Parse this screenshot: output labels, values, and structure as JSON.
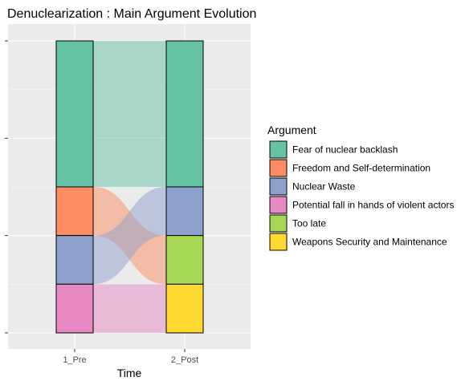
{
  "chart_data": {
    "type": "alluvial",
    "title": "Denuclearization : Main Argument Evolution",
    "xlabel": "Time",
    "ylabel": "",
    "axes": [
      "1_Pre",
      "2_Post"
    ],
    "total": 6,
    "legend": {
      "title": "Argument",
      "placement": "right",
      "items": [
        {
          "name": "Fear of nuclear backlash",
          "color": "#66c2a5"
        },
        {
          "name": "Freedom and Self-determination",
          "color": "#fc8d62"
        },
        {
          "name": "Nuclear Waste",
          "color": "#8da0cb"
        },
        {
          "name": "Potential fall in hands of violent actors",
          "color": "#e78ac3"
        },
        {
          "name": "Too late",
          "color": "#a6d854"
        },
        {
          "name": "Weapons Security and Maintenance",
          "color": "#ffd92f"
        }
      ]
    },
    "strata": {
      "1_Pre": [
        {
          "name": "Fear of nuclear backlash",
          "value": 3
        },
        {
          "name": "Freedom and Self-determination",
          "value": 1
        },
        {
          "name": "Nuclear Waste",
          "value": 1
        },
        {
          "name": "Potential fall in hands of violent actors",
          "value": 1
        }
      ],
      "2_Post": [
        {
          "name": "Fear of nuclear backlash",
          "value": 3
        },
        {
          "name": "Nuclear Waste",
          "value": 1
        },
        {
          "name": "Too late",
          "value": 1
        },
        {
          "name": "Weapons Security and Maintenance",
          "value": 1
        }
      ]
    },
    "flows": [
      {
        "from": "Fear of nuclear backlash",
        "to": "Fear of nuclear backlash",
        "value": 3,
        "fill": "Fear of nuclear backlash"
      },
      {
        "from": "Freedom and Self-determination",
        "to": "Too late",
        "value": 1,
        "fill": "Freedom and Self-determination"
      },
      {
        "from": "Nuclear Waste",
        "to": "Nuclear Waste",
        "value": 1,
        "fill": "Nuclear Waste"
      },
      {
        "from": "Potential fall in hands of violent actors",
        "to": "Weapons Security and Maintenance",
        "value": 1,
        "fill": "Potential fall in hands of violent actors"
      }
    ],
    "grid": true
  }
}
